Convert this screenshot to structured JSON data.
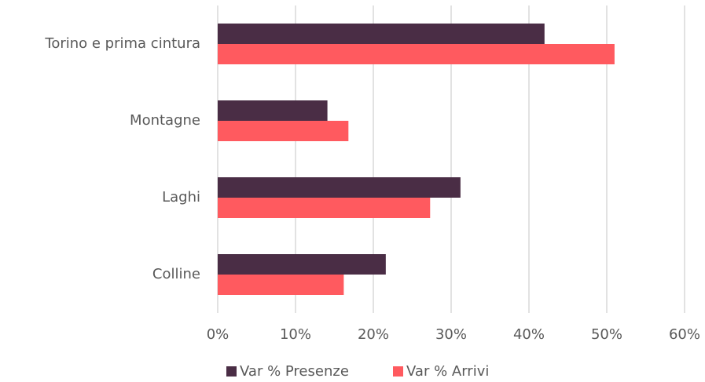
{
  "chart_data": {
    "type": "bar",
    "orientation": "horizontal",
    "categories": [
      "Torino e prima cintura",
      "Montagne",
      "Laghi",
      "Colline"
    ],
    "series": [
      {
        "name": "Var % Presenze",
        "color": "#4a2d45",
        "values": [
          42.0,
          14.1,
          31.2,
          21.6
        ]
      },
      {
        "name": "Var % Arrivi",
        "color": "#ff5a5f",
        "values": [
          51.0,
          16.8,
          27.3,
          16.2
        ]
      }
    ],
    "xlim": [
      0,
      60
    ],
    "xticks": [
      {
        "value": 0,
        "label": "0%"
      },
      {
        "value": 10,
        "label": "10%"
      },
      {
        "value": 20,
        "label": "20%"
      },
      {
        "value": 30,
        "label": "30%"
      },
      {
        "value": 40,
        "label": "40%"
      },
      {
        "value": 50,
        "label": "50%"
      },
      {
        "value": 60,
        "label": "60%"
      }
    ],
    "grid": true,
    "legend": "bottom"
  }
}
